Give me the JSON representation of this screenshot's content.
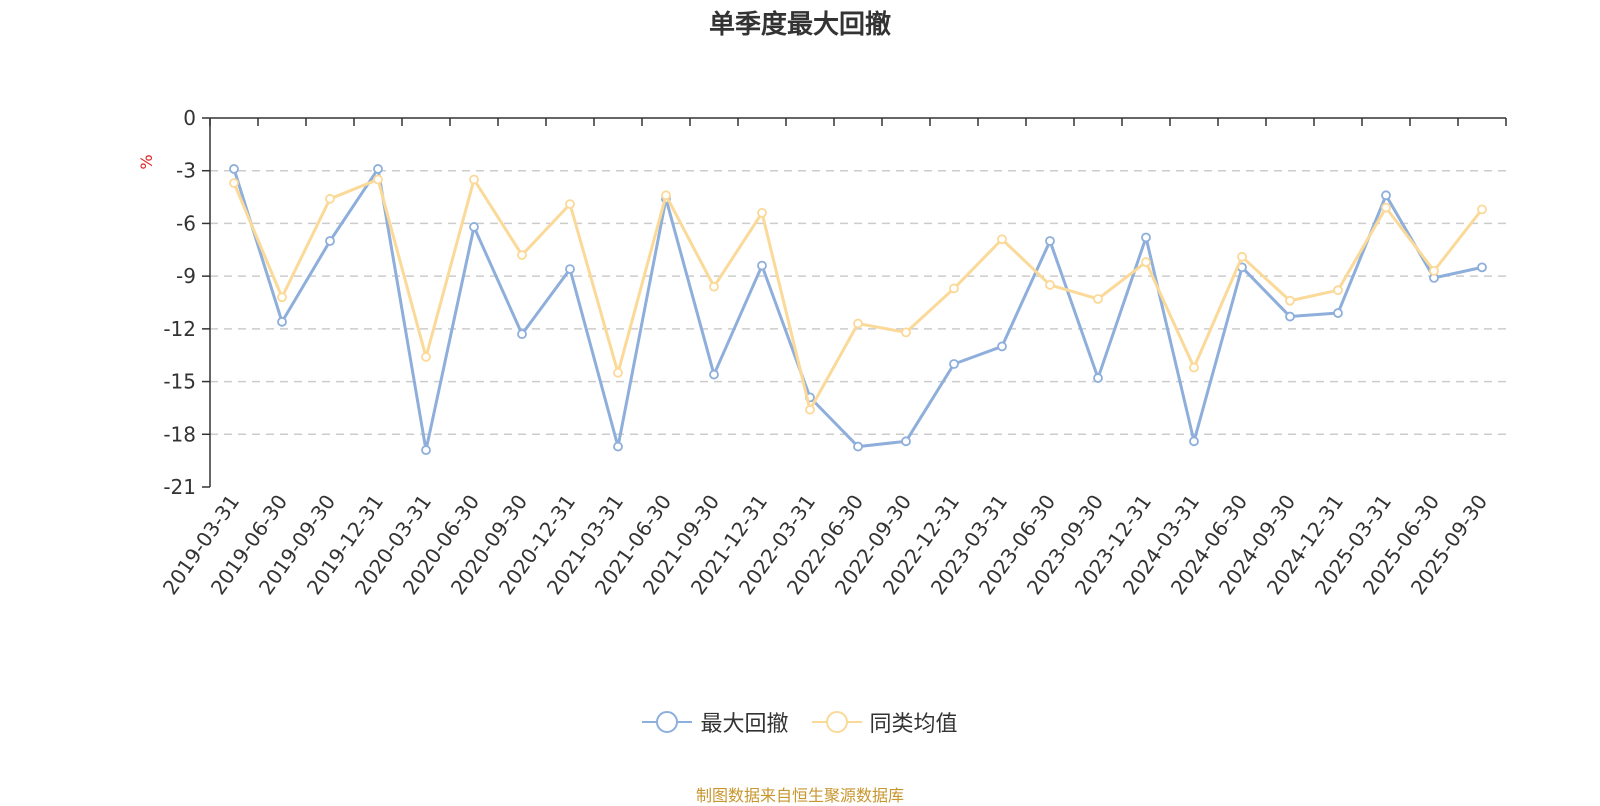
{
  "chart_data": {
    "type": "line",
    "title": "单季度最大回撤",
    "ylabel": "%",
    "xlabel": "",
    "ylim": [
      -21,
      0
    ],
    "yticks": [
      0,
      -3,
      -6,
      -9,
      -12,
      -15,
      -18,
      -21
    ],
    "grid": true,
    "legend_position": "bottom",
    "categories": [
      "2019-03-31",
      "2019-06-30",
      "2019-09-30",
      "2019-12-31",
      "2020-03-31",
      "2020-06-30",
      "2020-09-30",
      "2020-12-31",
      "2021-03-31",
      "2021-06-30",
      "2021-09-30",
      "2021-12-31",
      "2022-03-31",
      "2022-06-30",
      "2022-09-30",
      "2022-12-31",
      "2023-03-31",
      "2023-06-30",
      "2023-09-30",
      "2023-12-31",
      "2024-03-31",
      "2024-06-30",
      "2024-09-30",
      "2024-12-31",
      "2025-03-31",
      "2025-06-30",
      "2025-09-30"
    ],
    "series": [
      {
        "name": "最大回撤",
        "color": "#8eaedb",
        "values": [
          -2.9,
          -11.6,
          -7.0,
          -2.9,
          -18.9,
          -6.2,
          -12.3,
          -8.6,
          -18.7,
          -4.6,
          -14.6,
          -8.4,
          -15.9,
          -18.7,
          -18.4,
          -14.0,
          -13.0,
          -7.0,
          -14.8,
          -6.8,
          -18.4,
          -8.5,
          -11.3,
          -11.1,
          -4.4,
          -9.1,
          -8.5
        ]
      },
      {
        "name": "同类均值",
        "color": "#fbd998",
        "values": [
          -3.7,
          -10.2,
          -4.6,
          -3.5,
          -13.6,
          -3.5,
          -7.8,
          -4.9,
          -14.5,
          -4.4,
          -9.6,
          -5.4,
          -16.6,
          -11.7,
          -12.2,
          -9.7,
          -6.9,
          -9.5,
          -10.3,
          -8.2,
          -14.2,
          -7.9,
          -10.4,
          -9.8,
          -5.1,
          -8.7,
          -5.2
        ]
      }
    ]
  },
  "footer": {
    "note": "制图数据来自恒生聚源数据库"
  }
}
